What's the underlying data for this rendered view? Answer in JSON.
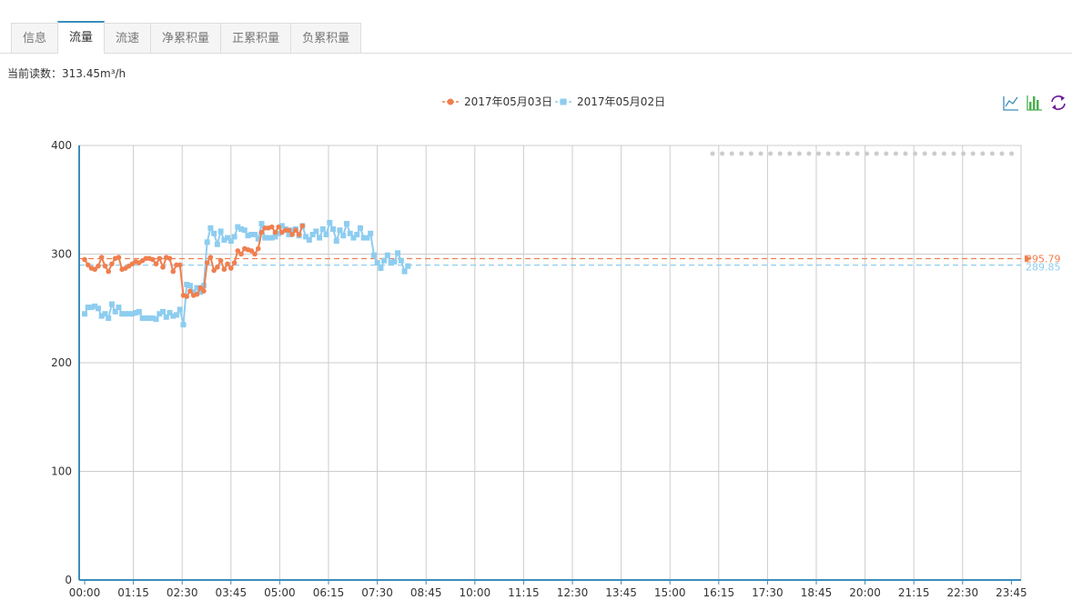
{
  "tabs": [
    {
      "label": "信息",
      "active": false
    },
    {
      "label": "流量",
      "active": true
    },
    {
      "label": "流速",
      "active": false
    },
    {
      "label": "净累积量",
      "active": false
    },
    {
      "label": "正累积量",
      "active": false
    },
    {
      "label": "负累积量",
      "active": false
    }
  ],
  "reading": {
    "label": "当前读数：",
    "value": "313.45m³/h"
  },
  "toolbox": [
    "line-chart-icon",
    "bar-chart-icon",
    "restore-icon"
  ],
  "colors": {
    "series_0": "#f07f4f",
    "series_1": "#8ecdf0",
    "axis": "#3c8dbc",
    "grid": "#cccccc"
  },
  "chart_data": {
    "type": "line",
    "ylim": [
      0,
      400
    ],
    "yticks": [
      0,
      100,
      200,
      300,
      400
    ],
    "xticklabels": [
      "00:00",
      "01:15",
      "02:30",
      "03:45",
      "05:00",
      "06:15",
      "07:30",
      "08:45",
      "10:00",
      "11:15",
      "12:30",
      "13:45",
      "15:00",
      "16:15",
      "17:30",
      "18:45",
      "20:00",
      "21:15",
      "22:30",
      "23:45"
    ],
    "series": [
      {
        "name": "2017年05月03日",
        "mark_line": 295.79,
        "mark_label": "295.79",
        "values": [
          295,
          290,
          287,
          286,
          289,
          297,
          289,
          284,
          291,
          296,
          297,
          286,
          287,
          289,
          291,
          293,
          292,
          294,
          296,
          296,
          295,
          291,
          296,
          288,
          297,
          296,
          284,
          290,
          290,
          262,
          261,
          266,
          262,
          263,
          269,
          266,
          292,
          297,
          285,
          288,
          294,
          286,
          291,
          287,
          292,
          303,
          300,
          305,
          304,
          303,
          300,
          305,
          320,
          324,
          324,
          325,
          320,
          325,
          320,
          322,
          322,
          318,
          322,
          318,
          326
        ]
      },
      {
        "name": "2017年05月02日",
        "mark_line": 289.85,
        "mark_label": "289.85",
        "values": [
          245,
          251,
          251,
          252,
          250,
          243,
          245,
          241,
          254,
          247,
          251,
          245,
          245,
          245,
          245,
          246,
          247,
          241,
          241,
          241,
          241,
          240,
          245,
          247,
          242,
          246,
          243,
          244,
          249,
          235,
          272,
          271,
          265,
          269,
          265,
          271,
          311,
          324,
          319,
          309,
          321,
          313,
          315,
          312,
          316,
          325,
          323,
          322,
          317,
          318,
          318,
          314,
          328,
          315,
          315,
          315,
          316,
          319,
          326,
          323,
          318,
          322,
          323,
          317,
          326,
          316,
          313,
          318,
          321,
          315,
          323,
          318,
          329,
          323,
          312,
          322,
          317,
          328,
          319,
          315,
          318,
          324,
          315,
          315,
          319,
          299,
          292,
          287,
          294,
          299,
          292,
          293,
          301,
          294,
          284,
          289
        ]
      }
    ]
  }
}
